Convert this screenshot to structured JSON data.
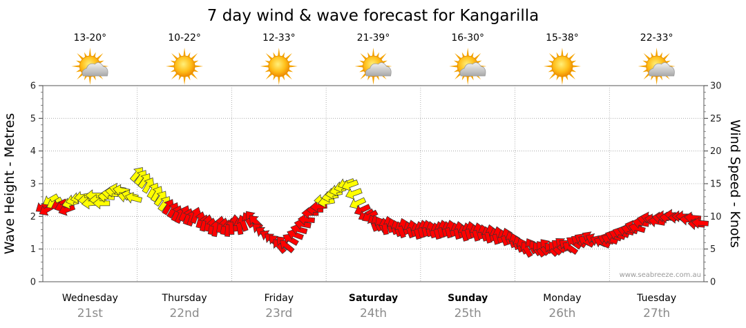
{
  "chart_data": {
    "type": "line",
    "title": "7 day wind & wave forecast for Kangarilla",
    "ylabel_left": "Wave Height - Metres",
    "ylabel_right": "Wind Speed - Knots",
    "ylim_left": [
      0,
      6
    ],
    "ylim_right": [
      0,
      30
    ],
    "yticks_left": [
      "0",
      "1",
      "2",
      "3",
      "4",
      "5",
      "6"
    ],
    "yticks_right": [
      "0",
      "5",
      "10",
      "15",
      "20",
      "25",
      "30"
    ],
    "grid": true,
    "credit": "www.seabreeze.com.au",
    "days": [
      {
        "name": "Wednesday",
        "date": "21st",
        "bold": false,
        "temp": "13-20°",
        "weather_icon": "partly-cloudy-icon"
      },
      {
        "name": "Thursday",
        "date": "22nd",
        "bold": false,
        "temp": "10-22°",
        "weather_icon": "sunny-icon"
      },
      {
        "name": "Friday",
        "date": "23rd",
        "bold": false,
        "temp": "12-33°",
        "weather_icon": "sunny-icon"
      },
      {
        "name": "Saturday",
        "date": "24th",
        "bold": true,
        "temp": "21-39°",
        "weather_icon": "partly-cloudy-icon"
      },
      {
        "name": "Sunday",
        "date": "25th",
        "bold": true,
        "temp": "16-30°",
        "weather_icon": "partly-cloudy-icon"
      },
      {
        "name": "Monday",
        "date": "26th",
        "bold": false,
        "temp": "15-38°",
        "weather_icon": "sunny-icon"
      },
      {
        "name": "Tuesday",
        "date": "27th",
        "bold": false,
        "temp": "22-33°",
        "weather_icon": "partly-cloudy-icon"
      }
    ],
    "colors": {
      "light_wind": "#ffff00",
      "strong_wind": "#ff0000",
      "outline": "#333333",
      "grid": "#9a9a9a"
    },
    "series": [
      {
        "name": "Wind Speed - Knots",
        "unit": "knots",
        "x_day": [
          0.0,
          0.04,
          0.08,
          0.12,
          0.17,
          0.21,
          0.25,
          0.29,
          0.33,
          0.38,
          0.42,
          0.46,
          0.5,
          0.54,
          0.58,
          0.62,
          0.67,
          0.71,
          0.75,
          0.79,
          0.83,
          0.88,
          0.92,
          0.96,
          1.0,
          1.04,
          1.08,
          1.12,
          1.17,
          1.21,
          1.25,
          1.29,
          1.33,
          1.38,
          1.42,
          1.46,
          1.5,
          1.54,
          1.58,
          1.62,
          1.67,
          1.71,
          1.75,
          1.79,
          1.83,
          1.88,
          1.92,
          1.96,
          2.0,
          2.04,
          2.08,
          2.12,
          2.17,
          2.21,
          2.25,
          2.29,
          2.33,
          2.38,
          2.42,
          2.46,
          2.5,
          2.54,
          2.58,
          2.62,
          2.67,
          2.71,
          2.75,
          2.79,
          2.83,
          2.88,
          2.92,
          2.96,
          3.0,
          3.04,
          3.08,
          3.12,
          3.17,
          3.21,
          3.25,
          3.29,
          3.33,
          3.38,
          3.42,
          3.46,
          3.5,
          3.54,
          3.58,
          3.62,
          3.67,
          3.71,
          3.75,
          3.79,
          3.83,
          3.88,
          3.92,
          3.96,
          4.0,
          4.04,
          4.08,
          4.12,
          4.17,
          4.21,
          4.25,
          4.29,
          4.33,
          4.38,
          4.42,
          4.46,
          4.5,
          4.54,
          4.58,
          4.62,
          4.67,
          4.71,
          4.75,
          4.79,
          4.83,
          4.88,
          4.92,
          4.96,
          5.0,
          5.04,
          5.08,
          5.12,
          5.17,
          5.21,
          5.25,
          5.29,
          5.33,
          5.38,
          5.42,
          5.46,
          5.5,
          5.54,
          5.58,
          5.62,
          5.67,
          5.71,
          5.75,
          5.79,
          5.83,
          5.88,
          5.92,
          5.96,
          6.0,
          6.04,
          6.08,
          6.12,
          6.17,
          6.21,
          6.25,
          6.29,
          6.33,
          6.38,
          6.42,
          6.46,
          6.5,
          6.54,
          6.58,
          6.62,
          6.67,
          6.71,
          6.75,
          6.79,
          6.83,
          6.88,
          6.92,
          6.96
        ],
        "values": [
          11.5,
          11.0,
          12.5,
          12.0,
          11.8,
          11.5,
          11.0,
          12.0,
          12.5,
          12.8,
          13.0,
          12.5,
          12.0,
          13.2,
          12.5,
          12.0,
          13.0,
          13.5,
          13.8,
          14.2,
          14.0,
          13.0,
          13.2,
          12.8,
          16.5,
          16.0,
          15.5,
          14.8,
          14.0,
          13.5,
          12.8,
          12.0,
          11.5,
          11.0,
          10.5,
          10.2,
          10.5,
          10.0,
          9.8,
          10.2,
          9.5,
          9.0,
          9.0,
          8.5,
          8.2,
          8.8,
          8.5,
          8.2,
          8.5,
          9.0,
          8.5,
          9.0,
          9.5,
          9.8,
          9.2,
          8.0,
          7.5,
          7.0,
          6.5,
          6.2,
          5.5,
          6.0,
          5.5,
          6.5,
          7.2,
          8.0,
          8.8,
          9.5,
          10.5,
          11.0,
          11.5,
          12.5,
          12.2,
          13.0,
          13.5,
          14.0,
          14.5,
          15.0,
          14.8,
          13.5,
          12.0,
          11.0,
          10.2,
          10.0,
          9.0,
          9.0,
          8.8,
          8.5,
          8.8,
          8.5,
          8.2,
          8.0,
          8.5,
          8.0,
          8.2,
          7.8,
          8.0,
          8.2,
          8.2,
          8.0,
          7.8,
          8.0,
          8.2,
          8.0,
          8.2,
          7.8,
          8.0,
          7.5,
          7.8,
          8.0,
          7.5,
          7.8,
          7.5,
          7.2,
          7.5,
          7.0,
          7.2,
          6.8,
          7.0,
          6.5,
          6.2,
          5.8,
          5.5,
          5.0,
          5.5,
          5.2,
          5.0,
          5.2,
          5.5,
          5.0,
          5.2,
          5.5,
          5.8,
          5.5,
          5.2,
          6.0,
          6.2,
          6.5,
          6.2,
          6.8,
          6.5,
          6.2,
          6.0,
          6.5,
          6.5,
          7.0,
          7.2,
          7.5,
          7.8,
          8.0,
          8.5,
          8.2,
          9.0,
          9.5,
          9.8,
          9.5,
          9.2,
          9.8,
          10.0,
          9.8,
          10.2,
          9.8,
          10.0,
          10.0,
          9.5,
          9.8,
          8.8,
          9.0
        ],
        "direction_deg": [
          145,
          150,
          150,
          150,
          155,
          160,
          160,
          165,
          165,
          170,
          170,
          175,
          175,
          180,
          180,
          180,
          185,
          185,
          185,
          190,
          190,
          190,
          195,
          195,
          310,
          305,
          305,
          300,
          300,
          300,
          305,
          305,
          300,
          300,
          295,
          295,
          295,
          290,
          290,
          290,
          285,
          285,
          280,
          280,
          280,
          280,
          280,
          275,
          270,
          265,
          260,
          250,
          240,
          230,
          225,
          220,
          215,
          210,
          220,
          225,
          230,
          225,
          220,
          210,
          200,
          195,
          190,
          185,
          180,
          180,
          175,
          175,
          170,
          170,
          170,
          165,
          165,
          160,
          160,
          160,
          155,
          155,
          150,
          150,
          250,
          245,
          240,
          260,
          255,
          250,
          250,
          250,
          250,
          250,
          255,
          255,
          255,
          255,
          255,
          255,
          255,
          255,
          255,
          255,
          255,
          255,
          255,
          255,
          255,
          255,
          255,
          255,
          255,
          255,
          255,
          255,
          255,
          250,
          250,
          250,
          250,
          250,
          245,
          240,
          240,
          235,
          235,
          230,
          230,
          225,
          225,
          220,
          220,
          220,
          215,
          215,
          215,
          210,
          210,
          210,
          205,
          205,
          205,
          200,
          200,
          200,
          200,
          200,
          195,
          195,
          195,
          195,
          190,
          190,
          190,
          190,
          190,
          185,
          185,
          185,
          185,
          180,
          180,
          180,
          185,
          185,
          185,
          185
        ]
      }
    ]
  }
}
